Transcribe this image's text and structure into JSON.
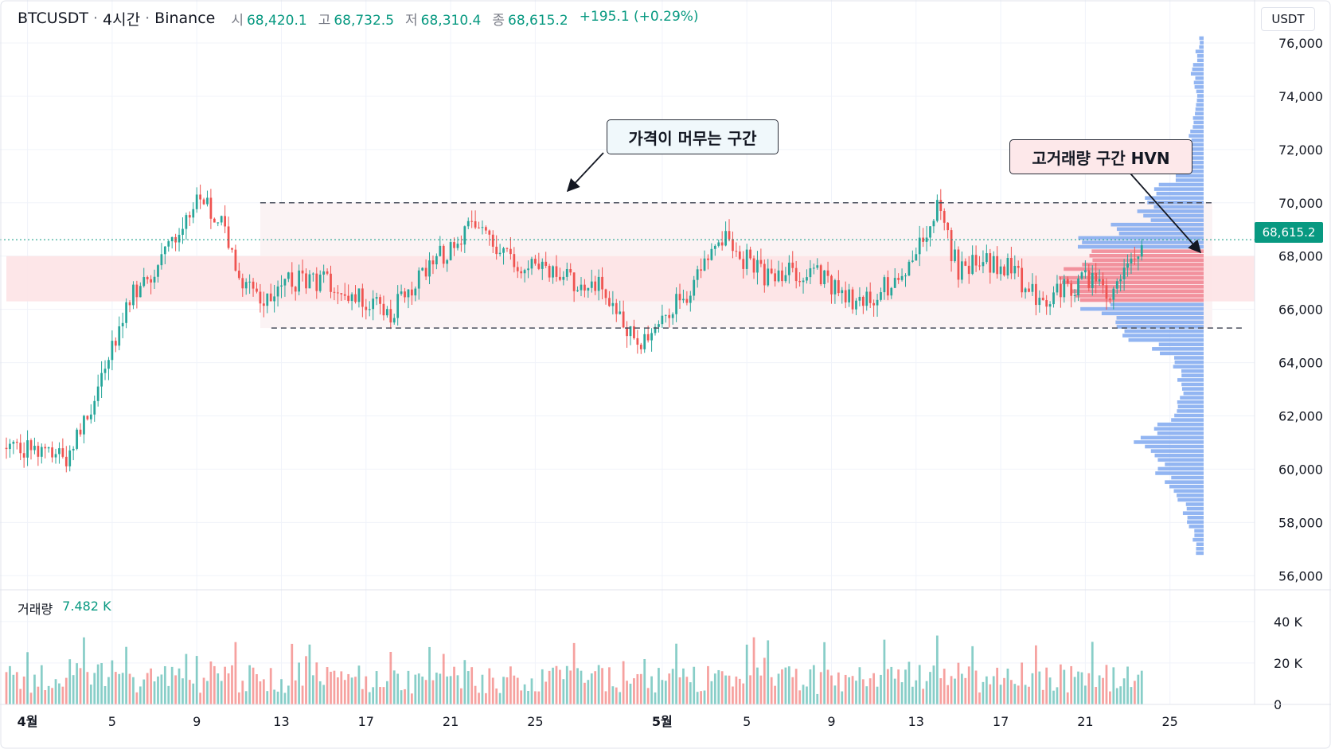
{
  "header": {
    "symbol": "BTCUSDT",
    "interval": "4시간",
    "exchange": "Binance",
    "open_label": "시",
    "open": "68,420.1",
    "high_label": "고",
    "high": "68,732.5",
    "low_label": "저",
    "low": "68,310.4",
    "close_label": "종",
    "close": "68,615.2",
    "change": "+195.1 (+0.29%)"
  },
  "unit_button": "USDT",
  "last_price_tag": "68,615.2",
  "volume_panel": {
    "label": "거래량",
    "value": "7.482 K"
  },
  "annotations": {
    "range_callout": "가격이 머무는 구간",
    "hvn_callout": "고거래량 구간 HVN"
  },
  "colors": {
    "up": "#26a69a",
    "down": "#ef5350",
    "profile": "#7fa8f0",
    "profile_hvn": "#f0828f",
    "hvn_band": "#fde3e6",
    "range_band": "#fbf3f4",
    "price_tag": "#089981"
  },
  "chart_data": {
    "type": "candlestick",
    "price_axis": {
      "ylim": [
        55500,
        76300
      ],
      "ticks": [
        56000,
        58000,
        60000,
        62000,
        64000,
        66000,
        68000,
        70000,
        72000,
        74000,
        76000
      ],
      "tick_labels": [
        "56,000",
        "58,000",
        "60,000",
        "62,000",
        "64,000",
        "66,000",
        "68,000",
        "70,000",
        "72,000",
        "74,000",
        "76,000"
      ]
    },
    "volume_axis": {
      "ylim": [
        0,
        48000
      ],
      "ticks": [
        0,
        20000,
        40000
      ],
      "tick_labels": [
        "0",
        "20 K",
        "40 K"
      ]
    },
    "time_axis": {
      "start": "2024-03-31",
      "end": "2024-05-29",
      "ticks": [
        {
          "date": "2024-04-01",
          "label": "4월",
          "bold": true
        },
        {
          "date": "2024-04-05",
          "label": "5"
        },
        {
          "date": "2024-04-09",
          "label": "9"
        },
        {
          "date": "2024-04-13",
          "label": "13"
        },
        {
          "date": "2024-04-17",
          "label": "17"
        },
        {
          "date": "2024-04-21",
          "label": "21"
        },
        {
          "date": "2024-04-25",
          "label": "25"
        },
        {
          "date": "2024-05-01",
          "label": "5월",
          "bold": true
        },
        {
          "date": "2024-05-05",
          "label": "5"
        },
        {
          "date": "2024-05-09",
          "label": "9"
        },
        {
          "date": "2024-05-13",
          "label": "13"
        },
        {
          "date": "2024-05-17",
          "label": "17"
        },
        {
          "date": "2024-05-21",
          "label": "21"
        },
        {
          "date": "2024-05-25",
          "label": "25"
        }
      ]
    },
    "price_path": [
      {
        "date": "2024-03-31",
        "price": 60800
      },
      {
        "date": "2024-04-03",
        "price": 60400
      },
      {
        "date": "2024-04-04",
        "price": 62500
      },
      {
        "date": "2024-04-06",
        "price": 66500
      },
      {
        "date": "2024-04-07",
        "price": 67500
      },
      {
        "date": "2024-04-09",
        "price": 70300
      },
      {
        "date": "2024-04-10",
        "price": 69500
      },
      {
        "date": "2024-04-11",
        "price": 67000
      },
      {
        "date": "2024-04-12",
        "price": 66500
      },
      {
        "date": "2024-04-14",
        "price": 67200
      },
      {
        "date": "2024-04-16",
        "price": 66800
      },
      {
        "date": "2024-04-18",
        "price": 65800
      },
      {
        "date": "2024-04-20",
        "price": 67500
      },
      {
        "date": "2024-04-22",
        "price": 69300
      },
      {
        "date": "2024-04-24",
        "price": 67800
      },
      {
        "date": "2024-04-26",
        "price": 67200
      },
      {
        "date": "2024-04-28",
        "price": 66800
      },
      {
        "date": "2024-04-30",
        "price": 64500
      },
      {
        "date": "2024-05-02",
        "price": 66500
      },
      {
        "date": "2024-05-04",
        "price": 68500
      },
      {
        "date": "2024-05-06",
        "price": 67200
      },
      {
        "date": "2024-05-08",
        "price": 67500
      },
      {
        "date": "2024-05-10",
        "price": 66200
      },
      {
        "date": "2024-05-12",
        "price": 67000
      },
      {
        "date": "2024-05-14",
        "price": 69700
      },
      {
        "date": "2024-05-15",
        "price": 67500
      },
      {
        "date": "2024-05-17",
        "price": 67800
      },
      {
        "date": "2024-05-19",
        "price": 66200
      },
      {
        "date": "2024-05-21",
        "price": 67200
      },
      {
        "date": "2024-05-22",
        "price": 66600
      },
      {
        "date": "2024-05-23",
        "price": 67600
      },
      {
        "date": "2024-05-23T16:00",
        "price": 68615
      }
    ],
    "current_price": 68615.2,
    "range_zone": {
      "low": 65300,
      "high": 70000,
      "from": "2024-04-12",
      "to": "2024-05-27"
    },
    "hvn_zone": {
      "low": 66300,
      "high": 68000
    },
    "volume_profile": {
      "price_bins": [
        57000,
        57500,
        58000,
        58500,
        59000,
        59500,
        60000,
        60500,
        61000,
        61500,
        62000,
        62500,
        63000,
        63500,
        64000,
        64500,
        65000,
        65500,
        66000,
        66500,
        67000,
        67500,
        68000,
        68500,
        69000,
        69500,
        70000,
        70500,
        71000,
        71500,
        72000,
        72500,
        73000,
        73500,
        74000,
        74500,
        75000,
        75500,
        76000
      ],
      "volume": [
        10,
        14,
        20,
        26,
        36,
        48,
        60,
        70,
        88,
        72,
        40,
        32,
        28,
        34,
        46,
        64,
        98,
        120,
        148,
        165,
        200,
        175,
        160,
        185,
        120,
        82,
        78,
        62,
        40,
        34,
        25,
        18,
        14,
        12,
        10,
        12,
        16,
        10,
        6
      ],
      "hvn_bins": [
        66500,
        67000,
        67500,
        68000
      ]
    }
  }
}
